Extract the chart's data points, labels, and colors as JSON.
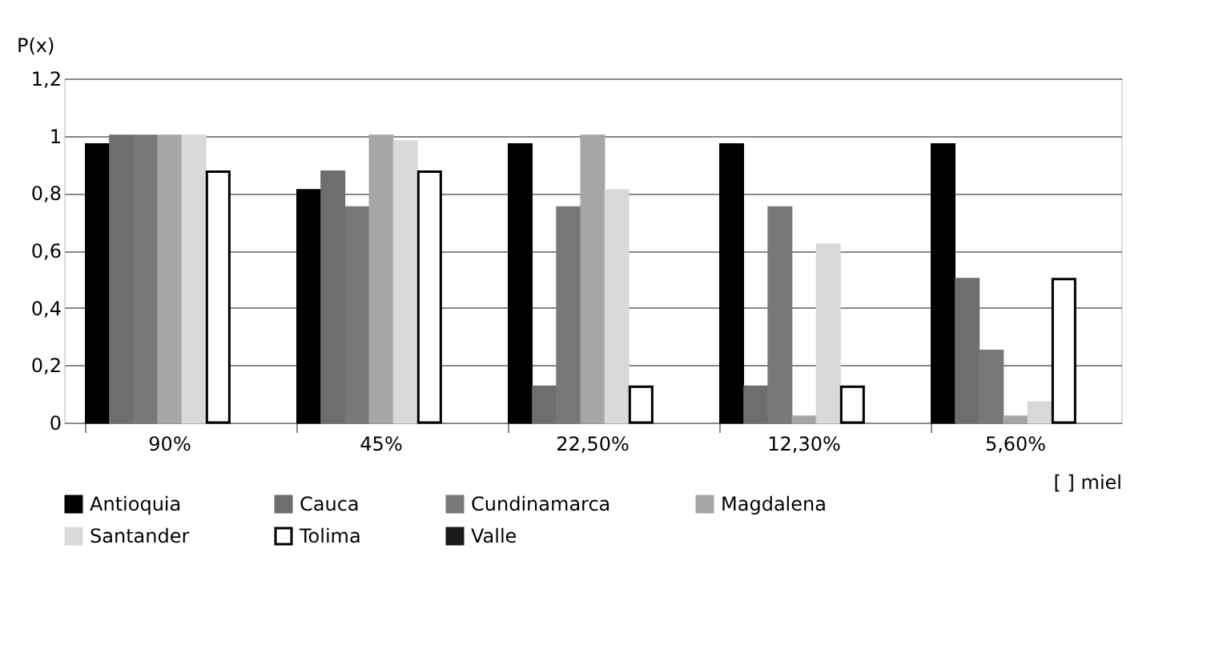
{
  "chart_data": {
    "type": "bar",
    "ylabel": "P(x)",
    "xlabel": "[ ] miel",
    "categories": [
      "90%",
      "45%",
      "22,50%",
      "12,30%",
      "5,60%"
    ],
    "series": [
      {
        "name": "Antioquia",
        "color": "#000000",
        "values": [
          0.97,
          0.81,
          0.97,
          0.97,
          0.97
        ]
      },
      {
        "name": "Cauca",
        "color": "#6e6e6e",
        "values": [
          1,
          0.875,
          0.125,
          0.125,
          0.5
        ]
      },
      {
        "name": "Cundinamarca",
        "color": "#787878",
        "values": [
          1,
          0.75,
          0.75,
          0.75,
          0.25
        ]
      },
      {
        "name": "Magdalena",
        "color": "#a6a6a6",
        "values": [
          1,
          1,
          1,
          0.02,
          0.02
        ]
      },
      {
        "name": "Santander",
        "color": "#d9d9d9",
        "values": [
          1,
          0.98,
          0.81,
          0.62,
          0.07
        ]
      },
      {
        "name": "Tolima",
        "color": "#ffffff",
        "values": [
          0.875,
          0.875,
          0.125,
          0.125,
          0.5
        ]
      },
      {
        "name": "Valle",
        "color": "#1a1a1a",
        "values": [
          null,
          null,
          null,
          null,
          null
        ]
      }
    ],
    "ylim": [
      0,
      1.2
    ],
    "yticks": [
      0,
      {
        "value": 0.2,
        "label": "0,2"
      },
      {
        "value": 0.4,
        "label": "0,4"
      },
      {
        "value": 0.6,
        "label": "0,6"
      },
      {
        "value": 0.8,
        "label": "0,8"
      },
      1,
      {
        "value": 1.2,
        "label": "1,2"
      }
    ],
    "grid": "y",
    "legend": "bottom"
  }
}
